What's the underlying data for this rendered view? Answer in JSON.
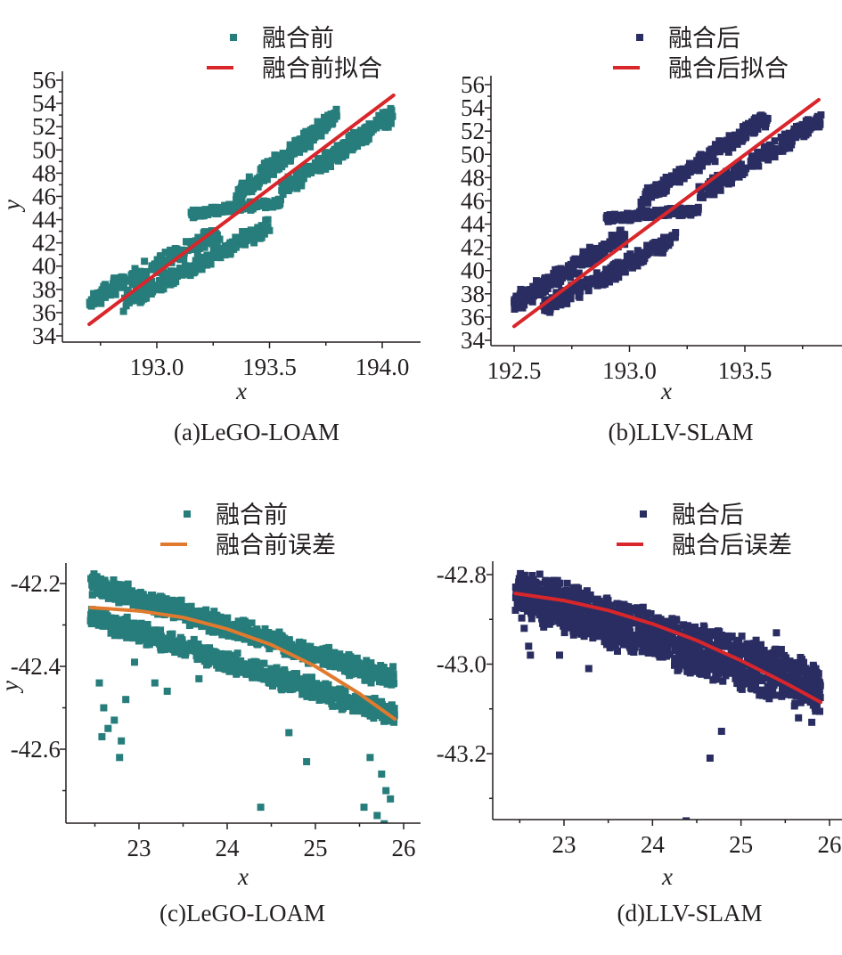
{
  "colors": {
    "before": "#267d7b",
    "after": "#2a2d62",
    "fit_red": "#d8262b",
    "fit_orange": "#e07a2e",
    "text": "#231f20"
  },
  "chart_data": [
    {
      "id": "a",
      "type": "scatter",
      "caption": "(a)LeGO-LOAM",
      "xlabel": "x",
      "ylabel": "y",
      "xlim": [
        192.62,
        194.22
      ],
      "ylim": [
        33.6,
        56.2
      ],
      "xticks": [
        193.0,
        193.5,
        194.0
      ],
      "xtick_labels": [
        "193.0",
        "193.5",
        "194.0"
      ],
      "x_minor_step": 0.25,
      "yticks": [
        34,
        36,
        38,
        40,
        42,
        44,
        46,
        48,
        50,
        52,
        54,
        56
      ],
      "ytick_labels": [
        "34",
        "36",
        "38",
        "40",
        "42",
        "44",
        "46",
        "48",
        "50",
        "52",
        "54",
        "56"
      ],
      "y_minor_step": 1,
      "legend": {
        "position": "top-right",
        "entries": [
          {
            "label": "融合前",
            "kind": "marker",
            "color": "#267d7b"
          },
          {
            "label": "融合前拟合",
            "kind": "line",
            "color": "#d8262b"
          }
        ]
      },
      "series": [
        {
          "name": "融合前",
          "kind": "scatter",
          "color": "#267d7b",
          "bands": [
            {
              "x0": 192.7,
              "x1": 193.28,
              "y0": 37.0,
              "y1": 43.0,
              "spread": 1.8
            },
            {
              "x0": 192.85,
              "x1": 193.5,
              "y0": 36.8,
              "y1": 43.5,
              "spread": 1.8
            },
            {
              "x0": 193.35,
              "x1": 193.8,
              "y0": 46.0,
              "y1": 53.0,
              "spread": 1.8
            },
            {
              "x0": 193.55,
              "x1": 194.05,
              "y0": 46.5,
              "y1": 53.0,
              "spread": 1.8
            },
            {
              "x0": 193.15,
              "x1": 193.55,
              "y0": 44.5,
              "y1": 45.5,
              "spread": 0.8
            }
          ],
          "count": 1100
        },
        {
          "name": "融合前拟合",
          "kind": "line",
          "color": "#d8262b",
          "x": [
            192.7,
            194.05
          ],
          "y": [
            35.0,
            54.7
          ]
        }
      ]
    },
    {
      "id": "b",
      "type": "scatter",
      "caption": "(b)LLV-SLAM",
      "xlabel": "x",
      "ylabel": "",
      "xlim": [
        192.4,
        193.9
      ],
      "ylim": [
        33.6,
        56.2
      ],
      "xticks": [
        192.5,
        193.0,
        193.5
      ],
      "xtick_labels": [
        "192.5",
        "193.0",
        "193.5"
      ],
      "x_minor_step": 0.25,
      "yticks": [
        34,
        36,
        38,
        40,
        42,
        44,
        46,
        48,
        50,
        52,
        54,
        56
      ],
      "ytick_labels": [
        "34",
        "36",
        "38",
        "40",
        "42",
        "44",
        "46",
        "48",
        "50",
        "52",
        "54",
        "56"
      ],
      "y_minor_step": 1,
      "legend": {
        "position": "top-right",
        "entries": [
          {
            "label": "融合后",
            "kind": "marker",
            "color": "#2a2d62"
          },
          {
            "label": "融合后拟合",
            "kind": "line",
            "color": "#d8262b"
          }
        ]
      },
      "series": [
        {
          "name": "融合后",
          "kind": "scatter",
          "color": "#2a2d62",
          "bands": [
            {
              "x0": 192.5,
              "x1": 192.98,
              "y0": 37.2,
              "y1": 43.0,
              "spread": 1.8
            },
            {
              "x0": 192.62,
              "x1": 193.2,
              "y0": 36.8,
              "y1": 42.8,
              "spread": 1.8
            },
            {
              "x0": 193.05,
              "x1": 193.6,
              "y0": 46.0,
              "y1": 53.2,
              "spread": 1.8
            },
            {
              "x0": 193.3,
              "x1": 193.83,
              "y0": 46.5,
              "y1": 53.0,
              "spread": 1.8
            },
            {
              "x0": 192.9,
              "x1": 193.3,
              "y0": 44.5,
              "y1": 45.2,
              "spread": 0.8
            }
          ],
          "count": 1100
        },
        {
          "name": "融合后拟合",
          "kind": "line",
          "color": "#d8262b",
          "x": [
            192.5,
            193.82
          ],
          "y": [
            35.2,
            54.7
          ]
        }
      ]
    },
    {
      "id": "c",
      "type": "scatter",
      "caption": "(c)LeGO-LOAM",
      "xlabel": "x",
      "ylabel": "y",
      "xlim": [
        22.18,
        26.18
      ],
      "ylim": [
        -42.78,
        -42.15
      ],
      "xticks": [
        23,
        24,
        25,
        26
      ],
      "xtick_labels": [
        "23",
        "24",
        "25",
        "26"
      ],
      "x_minor_step": 0.5,
      "yticks": [
        -42.6,
        -42.4,
        -42.2
      ],
      "ytick_labels": [
        "-42.6",
        "-42.4",
        "-42.2"
      ],
      "y_minor_step": 0.1,
      "legend": {
        "position": "top-right",
        "entries": [
          {
            "label": "融合前",
            "kind": "marker",
            "color": "#267d7b"
          },
          {
            "label": "融合前误差",
            "kind": "line",
            "color": "#e07a2e"
          }
        ]
      },
      "series": [
        {
          "name": "融合前",
          "kind": "scatter",
          "color": "#267d7b",
          "bands": [
            {
              "x0": 22.45,
              "x1": 25.9,
              "y0": -42.2,
              "y1": -42.43,
              "spread": 0.06
            },
            {
              "x0": 22.45,
              "x1": 25.9,
              "y0": -42.28,
              "y1": -42.52,
              "spread": 0.06
            }
          ],
          "count": 1400,
          "outliers": [
            [
              22.55,
              -42.44
            ],
            [
              22.6,
              -42.5
            ],
            [
              22.65,
              -42.55
            ],
            [
              22.72,
              -42.53
            ],
            [
              22.78,
              -42.62
            ],
            [
              22.8,
              -42.58
            ],
            [
              22.58,
              -42.57
            ],
            [
              22.85,
              -42.48
            ],
            [
              22.95,
              -42.39
            ],
            [
              23.18,
              -42.44
            ],
            [
              23.32,
              -42.46
            ],
            [
              23.68,
              -42.43
            ],
            [
              24.7,
              -42.56
            ],
            [
              24.38,
              -42.74
            ],
            [
              24.9,
              -42.63
            ],
            [
              25.62,
              -42.62
            ],
            [
              25.75,
              -42.66
            ],
            [
              25.8,
              -42.7
            ],
            [
              25.85,
              -42.72
            ],
            [
              25.7,
              -42.76
            ],
            [
              25.55,
              -42.74
            ],
            [
              25.78,
              -42.78
            ]
          ]
        },
        {
          "name": "融合前误差",
          "kind": "curve",
          "color": "#e07a2e",
          "x": [
            22.45,
            23.0,
            23.5,
            24.0,
            24.5,
            25.0,
            25.5,
            25.9
          ],
          "y": [
            -42.258,
            -42.266,
            -42.282,
            -42.31,
            -42.348,
            -42.4,
            -42.466,
            -42.527
          ]
        }
      ]
    },
    {
      "id": "d",
      "type": "scatter",
      "caption": "(d)LLV-SLAM",
      "xlabel": "x",
      "ylabel": "",
      "xlim": [
        22.2,
        26.2
      ],
      "ylim": [
        -43.36,
        -42.77
      ],
      "xticks": [
        23,
        24,
        25,
        26
      ],
      "xtick_labels": [
        "23",
        "24",
        "25",
        "26"
      ],
      "x_minor_step": 0.5,
      "yticks": [
        -43.2,
        -43.0,
        -42.8
      ],
      "ytick_labels": [
        "-43.2",
        "-43.0",
        "-42.8"
      ],
      "y_minor_step": 0.1,
      "legend": {
        "position": "top-right",
        "entries": [
          {
            "label": "融合后",
            "kind": "marker",
            "color": "#2a2d62"
          },
          {
            "label": "融合后误差",
            "kind": "line",
            "color": "#d8262b"
          }
        ]
      },
      "series": [
        {
          "name": "融合后",
          "kind": "scatter",
          "color": "#2a2d62",
          "bands": [
            {
              "x0": 22.45,
              "x1": 25.9,
              "y0": -42.82,
              "y1": -43.03,
              "spread": 0.08
            },
            {
              "x0": 22.45,
              "x1": 25.9,
              "y0": -42.86,
              "y1": -43.08,
              "spread": 0.08
            }
          ],
          "count": 1400,
          "outliers": [
            [
              22.55,
              -42.92
            ],
            [
              22.6,
              -42.96
            ],
            [
              22.62,
              -42.98
            ],
            [
              22.95,
              -42.98
            ],
            [
              23.28,
              -43.01
            ],
            [
              24.65,
              -43.21
            ],
            [
              24.78,
              -43.15
            ],
            [
              25.4,
              -42.93
            ],
            [
              24.38,
              -43.35
            ],
            [
              25.6,
              -43.36
            ],
            [
              25.65,
              -43.12
            ],
            [
              25.8,
              -43.13
            ]
          ]
        },
        {
          "name": "融合后误差",
          "kind": "curve",
          "color": "#d8262b",
          "x": [
            22.45,
            23.0,
            23.5,
            24.0,
            24.5,
            25.0,
            25.5,
            25.9
          ],
          "y": [
            -42.842,
            -42.858,
            -42.88,
            -42.91,
            -42.947,
            -42.992,
            -43.042,
            -43.085
          ]
        }
      ]
    }
  ]
}
